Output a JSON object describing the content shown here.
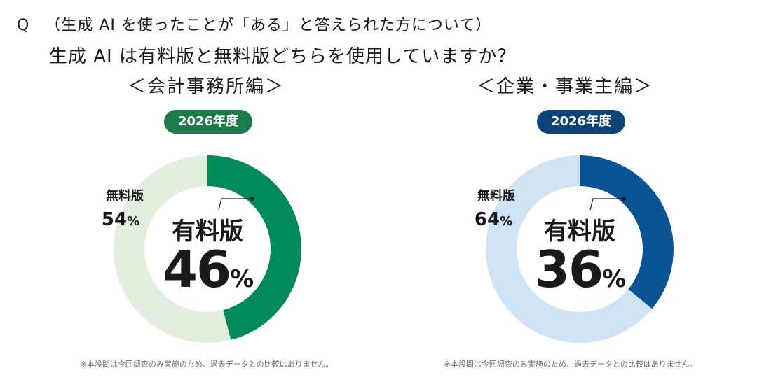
{
  "question": {
    "mark": "Q",
    "line1": "（生成 AI を使ったことが「ある」と答えられた方について）",
    "line2": "生成 AI は有料版と無料版どちらを使用していますか？"
  },
  "chart_data": [
    {
      "type": "pie",
      "title": "＜会計事務所編＞",
      "badge": "2026年度",
      "categories": [
        "有料版",
        "無料版"
      ],
      "values": [
        46,
        54
      ],
      "unit": "%",
      "highlight_label": "有料版",
      "highlight_value": "46",
      "other_label": "無料版",
      "other_value": "54",
      "colors": {
        "primary": "#008a5a",
        "secondary": "#e2efdf",
        "badge": "#1d7a4a"
      },
      "note": "※本設問は今回調査のみ実施のため、過去データとの比較はありません。"
    },
    {
      "type": "pie",
      "title": "＜企業・事業主編＞",
      "badge": "2026年度",
      "categories": [
        "有料版",
        "無料版"
      ],
      "values": [
        36,
        64
      ],
      "unit": "%",
      "highlight_label": "有料版",
      "highlight_value": "36",
      "other_label": "無料版",
      "other_value": "64",
      "colors": {
        "primary": "#0a5496",
        "secondary": "#cfe3f4",
        "badge": "#0d4377"
      },
      "note": "※本設問は今回調査のみ実施のため、過去データとの比較はありません。"
    }
  ]
}
